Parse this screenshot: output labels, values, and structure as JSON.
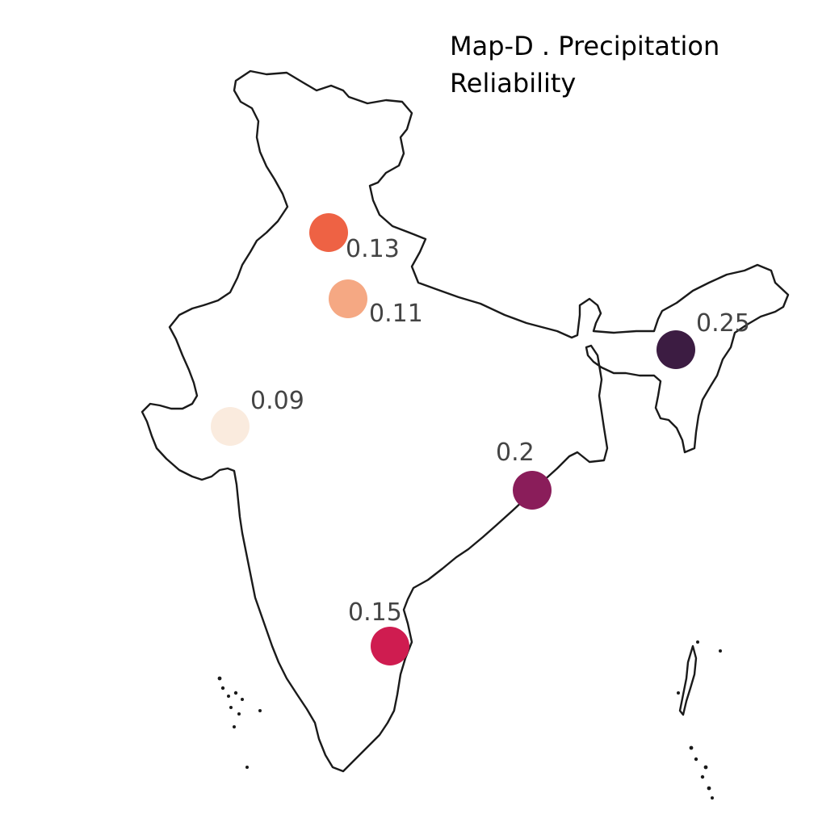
{
  "title": [
    "Map-D . Precipitation",
    "Reliability"
  ],
  "points": [
    {
      "value": "0.13",
      "color": "#ee6244"
    },
    {
      "value": "0.11",
      "color": "#f5a883"
    },
    {
      "value": "0.09",
      "color": "#faebde"
    },
    {
      "value": "0.25",
      "color": "#3c1c42"
    },
    {
      "value": "0.2",
      "color": "#8a1d5a"
    },
    {
      "value": "0.15",
      "color": "#cf1c50"
    }
  ]
}
